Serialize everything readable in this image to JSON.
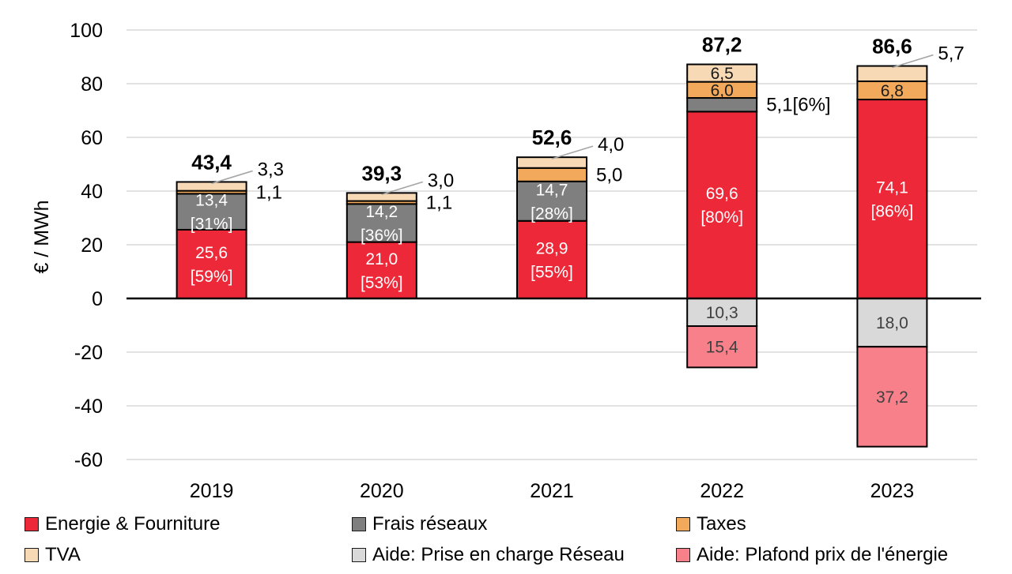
{
  "chart_data": {
    "type": "bar",
    "stacked": true,
    "ylabel": "€ / MWh",
    "ylim": [
      -60,
      100
    ],
    "ytick_step": 20,
    "grid": true,
    "legend_position": "bottom",
    "categories": [
      "2019",
      "2020",
      "2021",
      "2022",
      "2023"
    ],
    "totals": [
      "43,4",
      "39,3",
      "52,6",
      "87,2",
      "86,6"
    ],
    "series": [
      {
        "name": "Energie & Fourniture",
        "color": "#ED2939",
        "label_color": "#FFFFFF",
        "values": [
          25.6,
          21.0,
          28.9,
          69.6,
          74.1
        ],
        "labels": [
          "25,6\n[59%]",
          "21,0\n[53%]",
          "28,9\n[55%]",
          "69,6\n[80%]",
          "74,1\n[86%]"
        ],
        "label_placement": [
          "inside",
          "inside",
          "inside",
          "inside",
          "inside"
        ]
      },
      {
        "name": "Frais réseaux",
        "color": "#7F7F7F",
        "label_color": "#FFFFFF",
        "values": [
          13.4,
          14.2,
          14.7,
          5.1,
          0
        ],
        "labels": [
          "13,4\n[31%]",
          "14,2\n[36%]",
          "14,7\n[28%]",
          "5,1[6%]",
          null
        ],
        "label_placement": [
          "inside",
          "inside",
          "inside",
          "right",
          null
        ]
      },
      {
        "name": "Taxes",
        "color": "#F2A95C",
        "label_color": "#1A1A1A",
        "values": [
          1.1,
          1.1,
          5.0,
          6.0,
          6.8
        ],
        "labels": [
          "1,1",
          "1,1",
          "5,0",
          "6,0",
          "6,8"
        ],
        "label_placement": [
          "right",
          "right",
          "right",
          "inside",
          "inside"
        ]
      },
      {
        "name": "TVA",
        "color": "#F8D9B5",
        "label_color": "#1A1A1A",
        "values": [
          3.3,
          3.0,
          4.0,
          6.5,
          5.7
        ],
        "labels": [
          "3,3",
          "3,0",
          "4,0",
          "6,5",
          "5,7"
        ],
        "label_placement": [
          "callout",
          "callout",
          "callout",
          "inside",
          "callout"
        ]
      },
      {
        "name": "Aide: Prise en charge Réseau",
        "color": "#D9D9D9",
        "label_color": "#404040",
        "values": [
          0,
          0,
          0,
          -10.3,
          -18.0
        ],
        "labels": [
          null,
          null,
          null,
          "10,3",
          "18,0"
        ],
        "label_placement": [
          null,
          null,
          null,
          "inside",
          "inside"
        ]
      },
      {
        "name": "Aide: Plafond prix de l'énergie",
        "color": "#F7808A",
        "label_color": "#404040",
        "values": [
          0,
          0,
          0,
          -15.4,
          -37.2
        ],
        "labels": [
          null,
          null,
          null,
          "15,4",
          "37,2"
        ],
        "label_placement": [
          null,
          null,
          null,
          "inside",
          "inside"
        ]
      }
    ],
    "colors": {
      "gridline": "#D9D9D9",
      "axis": "#000000",
      "leader": "#A6A6A6"
    }
  }
}
